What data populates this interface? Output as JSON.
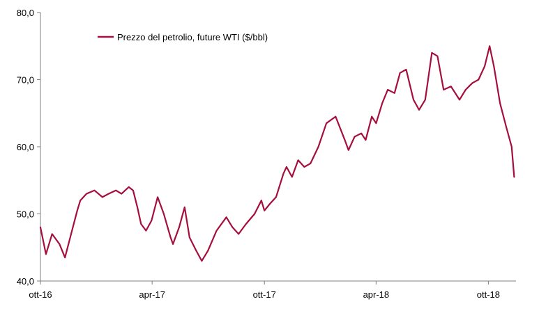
{
  "chart_data": {
    "type": "line",
    "title": "",
    "xlabel": "",
    "ylabel": "",
    "ylim": [
      40,
      80
    ],
    "y_ticks": [
      40,
      50,
      60,
      70,
      80
    ],
    "y_tick_labels": [
      "40,0",
      "50,0",
      "60,0",
      "70,0",
      "80,0"
    ],
    "x_range": [
      "2016-10-01",
      "2018-11-15"
    ],
    "x_ticks": [
      "2016-10-01",
      "2017-04-01",
      "2017-10-01",
      "2018-04-01",
      "2018-10-01"
    ],
    "x_tick_labels": [
      "ott-16",
      "apr-17",
      "ott-17",
      "apr-18",
      "ott-18"
    ],
    "grid": false,
    "legend_position": "top-left",
    "series": [
      {
        "name": "Prezzo del petrolio, future WTI ($/bbl)",
        "color": "#A50F3D",
        "x": [
          "2016-10-01",
          "2016-10-10",
          "2016-10-20",
          "2016-11-01",
          "2016-11-10",
          "2016-11-20",
          "2016-11-30",
          "2016-12-05",
          "2016-12-15",
          "2016-12-28",
          "2017-01-10",
          "2017-01-20",
          "2017-02-01",
          "2017-02-10",
          "2017-02-22",
          "2017-03-01",
          "2017-03-08",
          "2017-03-14",
          "2017-03-22",
          "2017-03-31",
          "2017-04-10",
          "2017-04-20",
          "2017-05-01",
          "2017-05-05",
          "2017-05-15",
          "2017-05-24",
          "2017-06-01",
          "2017-06-12",
          "2017-06-21",
          "2017-07-01",
          "2017-07-15",
          "2017-07-31",
          "2017-08-10",
          "2017-08-20",
          "2017-09-01",
          "2017-09-15",
          "2017-09-26",
          "2017-10-01",
          "2017-10-10",
          "2017-10-20",
          "2017-11-01",
          "2017-11-06",
          "2017-11-15",
          "2017-11-25",
          "2017-12-05",
          "2017-12-15",
          "2017-12-28",
          "2018-01-10",
          "2018-01-25",
          "2018-02-09",
          "2018-02-15",
          "2018-02-25",
          "2018-03-08",
          "2018-03-15",
          "2018-03-25",
          "2018-04-01",
          "2018-04-11",
          "2018-04-20",
          "2018-05-01",
          "2018-05-10",
          "2018-05-20",
          "2018-06-01",
          "2018-06-10",
          "2018-06-20",
          "2018-07-01",
          "2018-07-10",
          "2018-07-20",
          "2018-08-01",
          "2018-08-15",
          "2018-08-25",
          "2018-09-05",
          "2018-09-15",
          "2018-09-25",
          "2018-10-03",
          "2018-10-10",
          "2018-10-20",
          "2018-10-30",
          "2018-11-08",
          "2018-11-12"
        ],
        "values": [
          48.0,
          44.0,
          47.0,
          45.5,
          43.5,
          47.0,
          50.5,
          52.0,
          53.0,
          53.5,
          52.5,
          53.0,
          53.5,
          53.0,
          54.0,
          53.5,
          51.0,
          48.5,
          47.5,
          49.0,
          52.5,
          50.0,
          46.5,
          45.5,
          48.0,
          51.0,
          46.5,
          44.5,
          43.0,
          44.5,
          47.5,
          49.5,
          48.0,
          47.0,
          48.5,
          50.0,
          52.0,
          50.5,
          51.5,
          52.5,
          56.0,
          57.0,
          55.5,
          58.0,
          57.0,
          57.5,
          60.0,
          63.5,
          64.5,
          61.0,
          59.5,
          61.5,
          62.0,
          61.0,
          64.5,
          63.5,
          66.5,
          68.5,
          68.0,
          71.0,
          71.5,
          67.0,
          65.5,
          67.0,
          74.0,
          73.5,
          68.5,
          69.0,
          67.0,
          68.5,
          69.5,
          70.0,
          72.0,
          75.0,
          72.0,
          66.5,
          63.0,
          60.0,
          55.5
        ]
      }
    ]
  }
}
